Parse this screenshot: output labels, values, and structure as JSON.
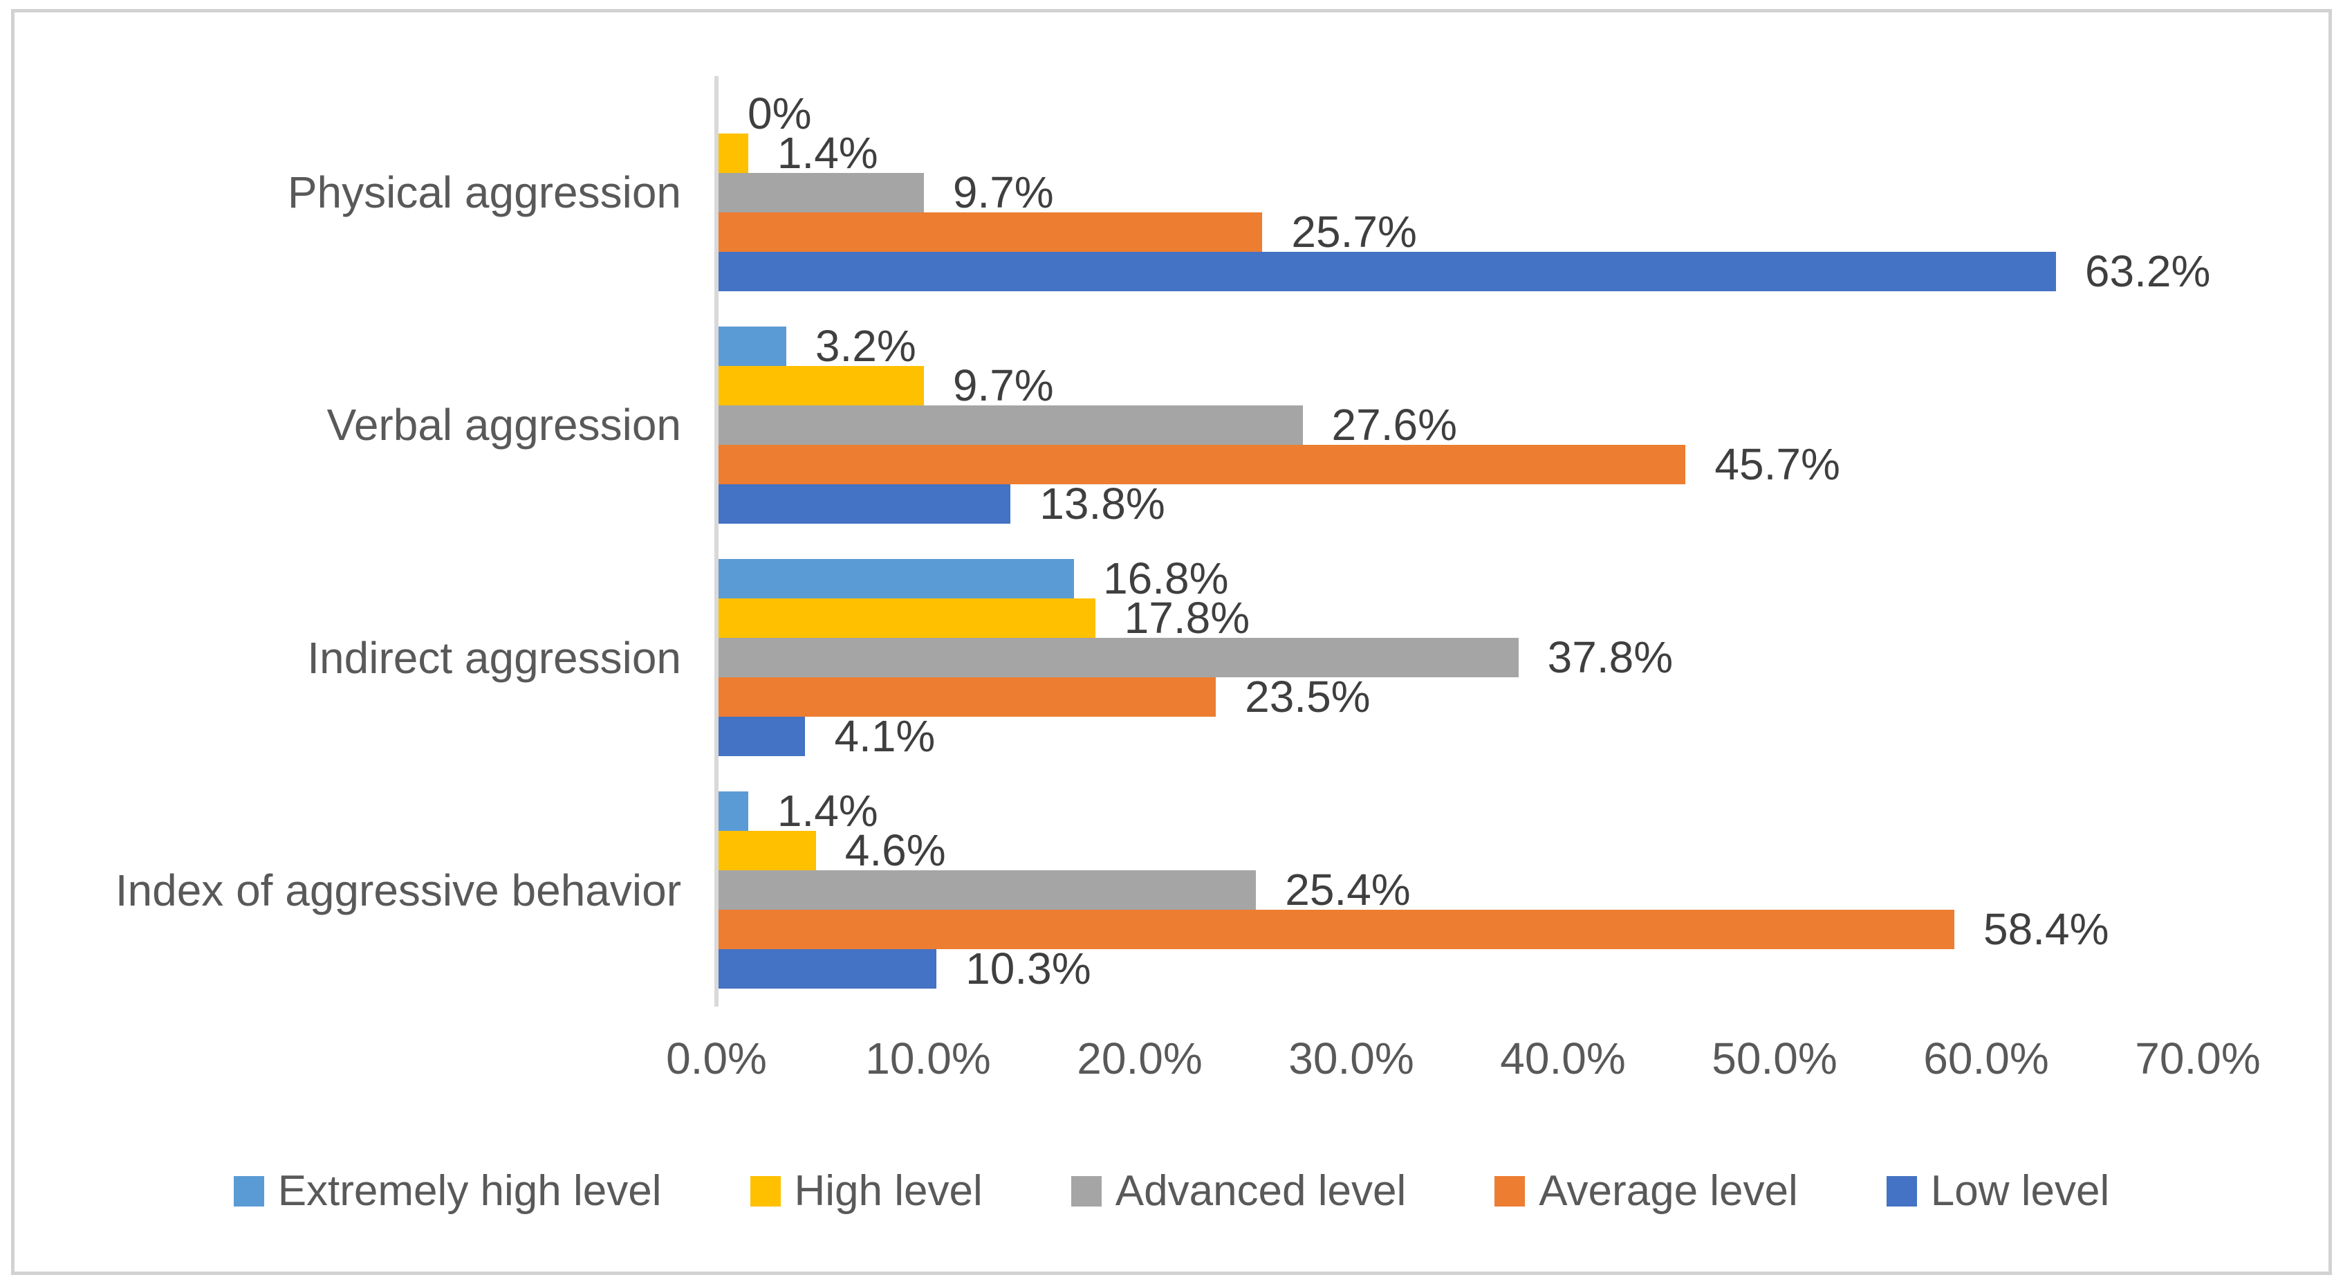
{
  "chart_data": {
    "type": "bar",
    "orientation": "horizontal",
    "title": "",
    "xlabel": "",
    "ylabel": "",
    "categories": [
      "Physical aggression",
      "Verbal aggression",
      "Indirect aggression",
      "Index of aggressive behavior"
    ],
    "series": [
      {
        "name": "Extremely high level",
        "color": "#5B9BD5",
        "values": [
          0,
          3.2,
          16.8,
          1.4
        ],
        "data_labels": [
          "0%",
          "3.2%",
          "16.8%",
          "1.4%"
        ]
      },
      {
        "name": "High level",
        "color": "#FFC000",
        "values": [
          1.4,
          9.7,
          17.8,
          4.6
        ],
        "data_labels": [
          "1.4%",
          "9.7%",
          "17.8%",
          "4.6%"
        ]
      },
      {
        "name": "Advanced level",
        "color": "#A5A5A5",
        "values": [
          9.7,
          27.6,
          37.8,
          25.4
        ],
        "data_labels": [
          "9.7%",
          "27.6%",
          "37.8%",
          "25.4%"
        ]
      },
      {
        "name": "Average level",
        "color": "#ED7D31",
        "values": [
          25.7,
          45.7,
          23.5,
          58.4
        ],
        "data_labels": [
          "25.7%",
          "45.7%",
          "23.5%",
          "58.4%"
        ]
      },
      {
        "name": "Low level",
        "color": "#4472C4",
        "values": [
          63.2,
          13.8,
          4.1,
          10.3
        ],
        "data_labels": [
          "63.2%",
          "13.8%",
          "4.1%",
          "10.3%"
        ]
      }
    ],
    "x_axis": {
      "min": 0,
      "max": 70,
      "tick_labels": [
        "0.0%",
        "10.0%",
        "20.0%",
        "30.0%",
        "40.0%",
        "50.0%",
        "60.0%",
        "70.0%"
      ]
    },
    "legend_position": "bottom",
    "grid": "off",
    "axis_line_color": "#D9D9D9",
    "data_label_color": "#3F3F3F",
    "axis_text_color": "#595959",
    "frame_border_color": "#D2D2D2",
    "background_color": "#FFFFFF"
  }
}
